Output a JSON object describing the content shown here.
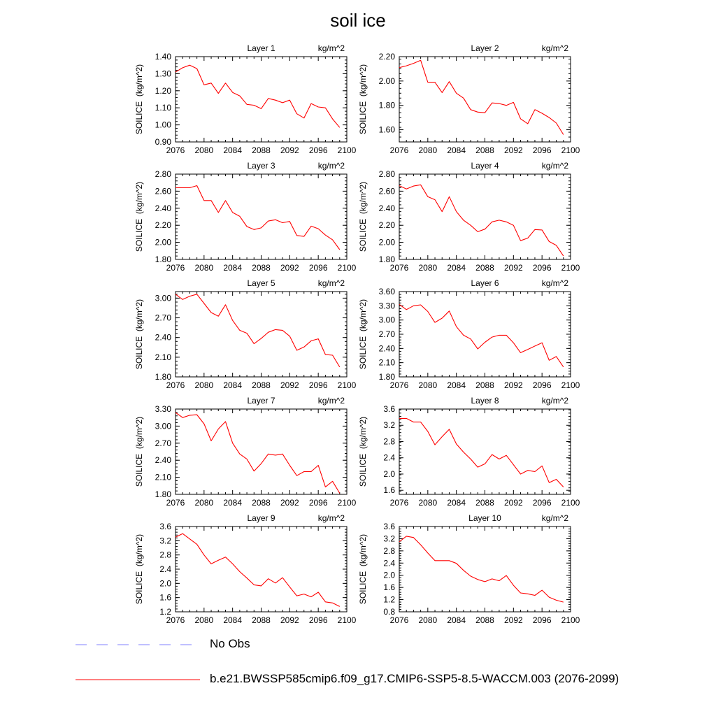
{
  "title": "soil ice",
  "colors": {
    "model": "#ff0000",
    "obs": "#8080ff"
  },
  "legend": [
    {
      "label": "No Obs",
      "style": "dashed",
      "color": "#8080ff"
    },
    {
      "label": "b.e21.BWSSP585cmip6.f09_g17.CMIP6-SSP5-8.5-WACCM.003 (2076-2099)",
      "style": "solid",
      "color": "#ff0000"
    }
  ],
  "chart_data": [
    {
      "type": "line",
      "title": "Layer 1",
      "units": "kg/m^2",
      "ylabel": "SOILICE  (kg/m^2)",
      "xlim": [
        2076,
        2100
      ],
      "xticks": [
        "2076",
        "2080",
        "2084",
        "2088",
        "2092",
        "2096",
        "2100"
      ],
      "ylim": [
        0.9,
        1.4
      ],
      "yticks": [
        "0.90",
        "1.00",
        "1.10",
        "1.20",
        "1.30",
        "1.40"
      ],
      "x": [
        2076,
        2077,
        2078,
        2079,
        2080,
        2081,
        2082,
        2083,
        2084,
        2085,
        2086,
        2087,
        2088,
        2089,
        2090,
        2091,
        2092,
        2093,
        2094,
        2095,
        2096,
        2097,
        2098,
        2099
      ],
      "values": [
        1.31,
        1.335,
        1.35,
        1.33,
        1.235,
        1.245,
        1.185,
        1.245,
        1.19,
        1.17,
        1.12,
        1.115,
        1.095,
        1.155,
        1.145,
        1.13,
        1.145,
        1.065,
        1.04,
        1.125,
        1.105,
        1.1,
        1.035,
        0.985
      ]
    },
    {
      "type": "line",
      "title": "Layer 2",
      "units": "kg/m^2",
      "ylabel": "SOILICE  (kg/m^2)",
      "xlim": [
        2076,
        2100
      ],
      "xticks": [
        "2076",
        "2080",
        "2084",
        "2088",
        "2092",
        "2096",
        "2100"
      ],
      "ylim": [
        1.5,
        2.2
      ],
      "yticks": [
        "1.60",
        "1.80",
        "2.00",
        "2.20"
      ],
      "x": [
        2076,
        2077,
        2078,
        2079,
        2080,
        2081,
        2082,
        2083,
        2084,
        2085,
        2086,
        2087,
        2088,
        2089,
        2090,
        2091,
        2092,
        2093,
        2094,
        2095,
        2096,
        2097,
        2098,
        2099
      ],
      "values": [
        2.11,
        2.125,
        2.145,
        2.17,
        1.99,
        1.99,
        1.905,
        1.995,
        1.9,
        1.86,
        1.765,
        1.745,
        1.74,
        1.82,
        1.815,
        1.8,
        1.825,
        1.69,
        1.65,
        1.765,
        1.735,
        1.7,
        1.655,
        1.56
      ]
    },
    {
      "type": "line",
      "title": "Layer 3",
      "units": "kg/m^2",
      "ylabel": "SOILICE  (kg/m^2)",
      "xlim": [
        2076,
        2100
      ],
      "xticks": [
        "2076",
        "2080",
        "2084",
        "2088",
        "2092",
        "2096",
        "2100"
      ],
      "ylim": [
        1.8,
        2.8
      ],
      "yticks": [
        "1.80",
        "2.00",
        "2.20",
        "2.40",
        "2.60",
        "2.80"
      ],
      "x": [
        2076,
        2077,
        2078,
        2079,
        2080,
        2081,
        2082,
        2083,
        2084,
        2085,
        2086,
        2087,
        2088,
        2089,
        2090,
        2091,
        2092,
        2093,
        2094,
        2095,
        2096,
        2097,
        2098,
        2099
      ],
      "values": [
        2.64,
        2.64,
        2.64,
        2.665,
        2.49,
        2.49,
        2.35,
        2.49,
        2.35,
        2.305,
        2.185,
        2.15,
        2.17,
        2.25,
        2.265,
        2.23,
        2.245,
        2.08,
        2.07,
        2.19,
        2.16,
        2.085,
        2.03,
        1.915
      ]
    },
    {
      "type": "line",
      "title": "Layer 4",
      "units": "kg/m^2",
      "ylabel": "SOILICE  (kg/m^2)",
      "xlim": [
        2076,
        2100
      ],
      "xticks": [
        "2076",
        "2080",
        "2084",
        "2088",
        "2092",
        "2096",
        "2100"
      ],
      "ylim": [
        1.8,
        2.8
      ],
      "yticks": [
        "1.80",
        "2.00",
        "2.20",
        "2.40",
        "2.60",
        "2.80"
      ],
      "x": [
        2076,
        2077,
        2078,
        2079,
        2080,
        2081,
        2082,
        2083,
        2084,
        2085,
        2086,
        2087,
        2088,
        2089,
        2090,
        2091,
        2092,
        2093,
        2094,
        2095,
        2096,
        2097,
        2098,
        2099
      ],
      "values": [
        2.665,
        2.625,
        2.66,
        2.675,
        2.535,
        2.5,
        2.36,
        2.535,
        2.36,
        2.26,
        2.2,
        2.125,
        2.155,
        2.24,
        2.26,
        2.24,
        2.2,
        2.02,
        2.05,
        2.15,
        2.145,
        2.01,
        1.965,
        1.84
      ]
    },
    {
      "type": "line",
      "title": "Layer 5",
      "units": "kg/m^2",
      "ylabel": "SOILICE  (kg/m^2)",
      "xlim": [
        2076,
        2100
      ],
      "xticks": [
        "2076",
        "2080",
        "2084",
        "2088",
        "2092",
        "2096",
        "2100"
      ],
      "ylim": [
        1.8,
        3.1
      ],
      "yticks": [
        "1.80",
        "2.10",
        "2.40",
        "2.70",
        "3.00"
      ],
      "x": [
        2076,
        2077,
        2078,
        2079,
        2080,
        2081,
        2082,
        2083,
        2084,
        2085,
        2086,
        2087,
        2088,
        2089,
        2090,
        2091,
        2092,
        2093,
        2094,
        2095,
        2096,
        2097,
        2098,
        2099
      ],
      "values": [
        3.06,
        2.98,
        3.03,
        3.06,
        2.92,
        2.78,
        2.725,
        2.9,
        2.66,
        2.51,
        2.465,
        2.305,
        2.385,
        2.48,
        2.52,
        2.51,
        2.42,
        2.205,
        2.255,
        2.35,
        2.38,
        2.14,
        2.13,
        1.95
      ]
    },
    {
      "type": "line",
      "title": "Layer 6",
      "units": "kg/m^2",
      "ylabel": "SOILICE  (kg/m^2)",
      "xlim": [
        2076,
        2100
      ],
      "xticks": [
        "2076",
        "2080",
        "2084",
        "2088",
        "2092",
        "2096",
        "2100"
      ],
      "ylim": [
        1.8,
        3.6
      ],
      "yticks": [
        "1.80",
        "2.10",
        "2.40",
        "2.70",
        "3.00",
        "3.30",
        "3.60"
      ],
      "x": [
        2076,
        2077,
        2078,
        2079,
        2080,
        2081,
        2082,
        2083,
        2084,
        2085,
        2086,
        2087,
        2088,
        2089,
        2090,
        2091,
        2092,
        2093,
        2094,
        2095,
        2096,
        2097,
        2098,
        2099
      ],
      "values": [
        3.33,
        3.22,
        3.3,
        3.32,
        3.18,
        2.95,
        3.04,
        3.19,
        2.86,
        2.68,
        2.6,
        2.39,
        2.53,
        2.64,
        2.68,
        2.68,
        2.52,
        2.31,
        2.38,
        2.45,
        2.52,
        2.15,
        2.23,
        2.01
      ]
    },
    {
      "type": "line",
      "title": "Layer 7",
      "units": "kg/m^2",
      "ylabel": "SOILICE  (kg/m^2)",
      "xlim": [
        2076,
        2100
      ],
      "xticks": [
        "2076",
        "2080",
        "2084",
        "2088",
        "2092",
        "2096",
        "2100"
      ],
      "ylim": [
        1.8,
        3.3
      ],
      "yticks": [
        "1.80",
        "2.10",
        "2.40",
        "2.70",
        "3.00",
        "3.30"
      ],
      "x": [
        2076,
        2077,
        2078,
        2079,
        2080,
        2081,
        2082,
        2083,
        2084,
        2085,
        2086,
        2087,
        2088,
        2089,
        2090,
        2091,
        2092,
        2093,
        2094,
        2095,
        2096,
        2097,
        2098,
        2099
      ],
      "values": [
        3.24,
        3.15,
        3.19,
        3.2,
        3.04,
        2.74,
        2.95,
        3.08,
        2.7,
        2.51,
        2.42,
        2.21,
        2.34,
        2.51,
        2.49,
        2.51,
        2.31,
        2.13,
        2.2,
        2.2,
        2.31,
        1.93,
        2.03,
        1.82
      ]
    },
    {
      "type": "line",
      "title": "Layer 8",
      "units": "kg/m^2",
      "ylabel": "SOILICE  (kg/m^2)",
      "xlim": [
        2076,
        2100
      ],
      "xticks": [
        "2076",
        "2080",
        "2084",
        "2088",
        "2092",
        "2096",
        "2100"
      ],
      "ylim": [
        1.5,
        3.6
      ],
      "yticks": [
        "1.6",
        "2.0",
        "2.4",
        "2.8",
        "3.2",
        "3.6"
      ],
      "x": [
        2076,
        2077,
        2078,
        2079,
        2080,
        2081,
        2082,
        2083,
        2084,
        2085,
        2086,
        2087,
        2088,
        2089,
        2090,
        2091,
        2092,
        2093,
        2094,
        2095,
        2096,
        2097,
        2098,
        2099
      ],
      "values": [
        3.37,
        3.37,
        3.28,
        3.28,
        3.05,
        2.72,
        2.92,
        3.1,
        2.74,
        2.54,
        2.37,
        2.17,
        2.25,
        2.48,
        2.37,
        2.46,
        2.23,
        2.0,
        2.09,
        2.06,
        2.2,
        1.79,
        1.87,
        1.68
      ]
    },
    {
      "type": "line",
      "title": "Layer 9",
      "units": "kg/m^2",
      "ylabel": "SOILICE  (kg/m^2)",
      "xlim": [
        2076,
        2100
      ],
      "xticks": [
        "2076",
        "2080",
        "2084",
        "2088",
        "2092",
        "2096",
        "2100"
      ],
      "ylim": [
        1.2,
        3.6
      ],
      "yticks": [
        "1.2",
        "1.6",
        "2.0",
        "2.4",
        "2.8",
        "3.2",
        "3.6"
      ],
      "x": [
        2076,
        2077,
        2078,
        2079,
        2080,
        2081,
        2082,
        2083,
        2084,
        2085,
        2086,
        2087,
        2088,
        2089,
        2090,
        2091,
        2092,
        2093,
        2094,
        2095,
        2096,
        2097,
        2098,
        2099
      ],
      "values": [
        3.3,
        3.4,
        3.25,
        3.1,
        2.8,
        2.55,
        2.65,
        2.74,
        2.55,
        2.33,
        2.15,
        1.96,
        1.93,
        2.13,
        2.01,
        2.16,
        1.9,
        1.65,
        1.7,
        1.62,
        1.75,
        1.48,
        1.45,
        1.35
      ]
    },
    {
      "type": "line",
      "title": "Layer 10",
      "units": "kg/m^2",
      "ylabel": "SOILICE  (kg/m^2)",
      "xlim": [
        2076,
        2100
      ],
      "xticks": [
        "2076",
        "2080",
        "2084",
        "2088",
        "2092",
        "2096",
        "2100"
      ],
      "ylim": [
        0.8,
        3.6
      ],
      "yticks": [
        "0.8",
        "1.2",
        "1.6",
        "2.0",
        "2.4",
        "2.8",
        "3.2",
        "3.6"
      ],
      "x": [
        2076,
        2077,
        2078,
        2079,
        2080,
        2081,
        2082,
        2083,
        2084,
        2085,
        2086,
        2087,
        2088,
        2089,
        2090,
        2091,
        2092,
        2093,
        2094,
        2095,
        2096,
        2097,
        2098,
        2099
      ],
      "values": [
        3.1,
        3.28,
        3.24,
        3.0,
        2.73,
        2.48,
        2.48,
        2.48,
        2.39,
        2.16,
        1.97,
        1.86,
        1.79,
        1.88,
        1.82,
        1.99,
        1.67,
        1.42,
        1.39,
        1.34,
        1.51,
        1.28,
        1.18,
        1.12
      ]
    }
  ]
}
